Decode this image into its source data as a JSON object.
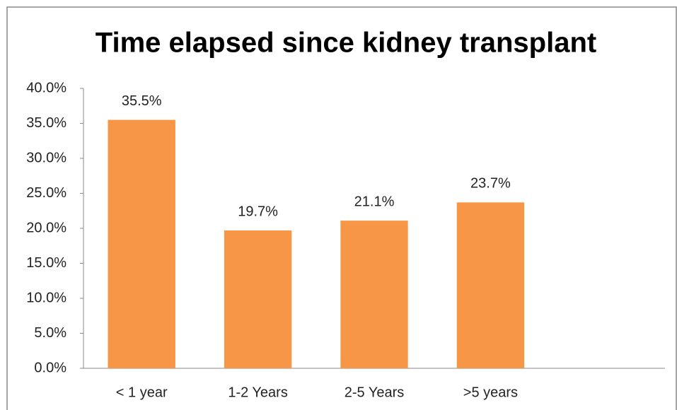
{
  "chart_data": {
    "type": "bar",
    "title": "Time elapsed since kidney transplant",
    "categories": [
      "< 1 year",
      "1-2 Years",
      "2-5 Years",
      ">5 years",
      null
    ],
    "values": [
      35.5,
      19.7,
      21.1,
      23.7,
      null
    ],
    "value_labels": [
      "35.5%",
      "19.7%",
      "21.1%",
      "23.7%",
      null
    ],
    "color": "#f79646",
    "ylim": [
      0,
      40
    ],
    "yticks": [
      {
        "value": 0,
        "label": "0.0%"
      },
      {
        "value": 5,
        "label": "5.0%"
      },
      {
        "value": 10,
        "label": "10.0%"
      },
      {
        "value": 15,
        "label": "15.0%"
      },
      {
        "value": 20,
        "label": "20.0%"
      },
      {
        "value": 25,
        "label": "25.0%"
      },
      {
        "value": 30,
        "label": "30.0%"
      },
      {
        "value": 35,
        "label": "35.0%"
      },
      {
        "value": 40,
        "label": "40.0%"
      }
    ],
    "grid": false
  }
}
